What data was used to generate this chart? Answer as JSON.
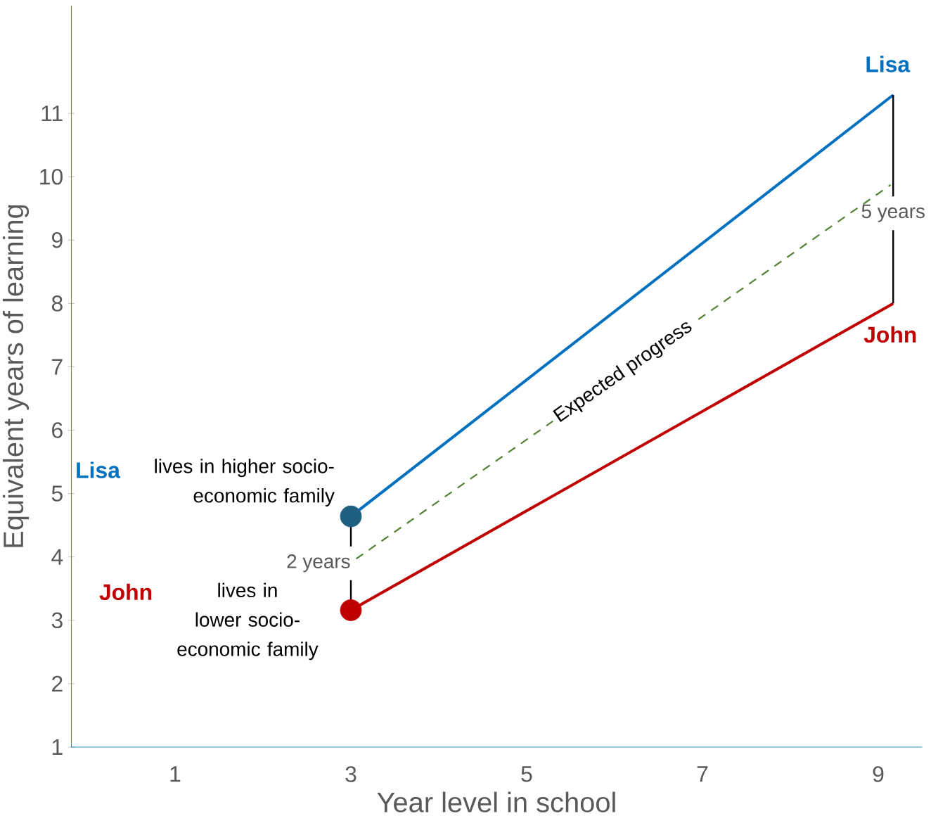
{
  "chart_data": {
    "type": "line",
    "xlabel": "Year level in school",
    "ylabel": "Equivalent years of learning",
    "xlim": [
      -0.18,
      9.5
    ],
    "ylim": [
      1,
      12.7
    ],
    "xticks": [
      1,
      3,
      5,
      7,
      9
    ],
    "yticks": [
      1,
      2,
      3,
      4,
      5,
      6,
      7,
      8,
      9,
      10,
      11
    ],
    "series": [
      {
        "name": "Lisa",
        "color": "#0070c0",
        "x": [
          3,
          9.17
        ],
        "values": [
          4.64,
          11.29
        ]
      },
      {
        "name": "John",
        "color": "#c00000",
        "x": [
          3,
          9.17
        ],
        "values": [
          3.16,
          8.0
        ]
      },
      {
        "name": "Expected progress",
        "color": "#548235",
        "line_style": "dashed",
        "x": [
          3.06,
          9.14
        ],
        "values": [
          3.97,
          9.87
        ]
      },
      {
        "type": "scatter",
        "color": "#1f6080",
        "x": [
          3
        ],
        "values": [
          4.64
        ]
      },
      {
        "type": "scatter",
        "color": "#c00000",
        "x": [
          3
        ],
        "values": [
          3.16
        ]
      }
    ],
    "annotations": [
      "lives in higher socio-economic family",
      "lives in lower socio-economic family",
      {
        "text": "2 years",
        "x": 3,
        "y": 4.64
      },
      {
        "text": "5 years",
        "x": 9.17,
        "y": 11.29
      }
    ]
  }
}
